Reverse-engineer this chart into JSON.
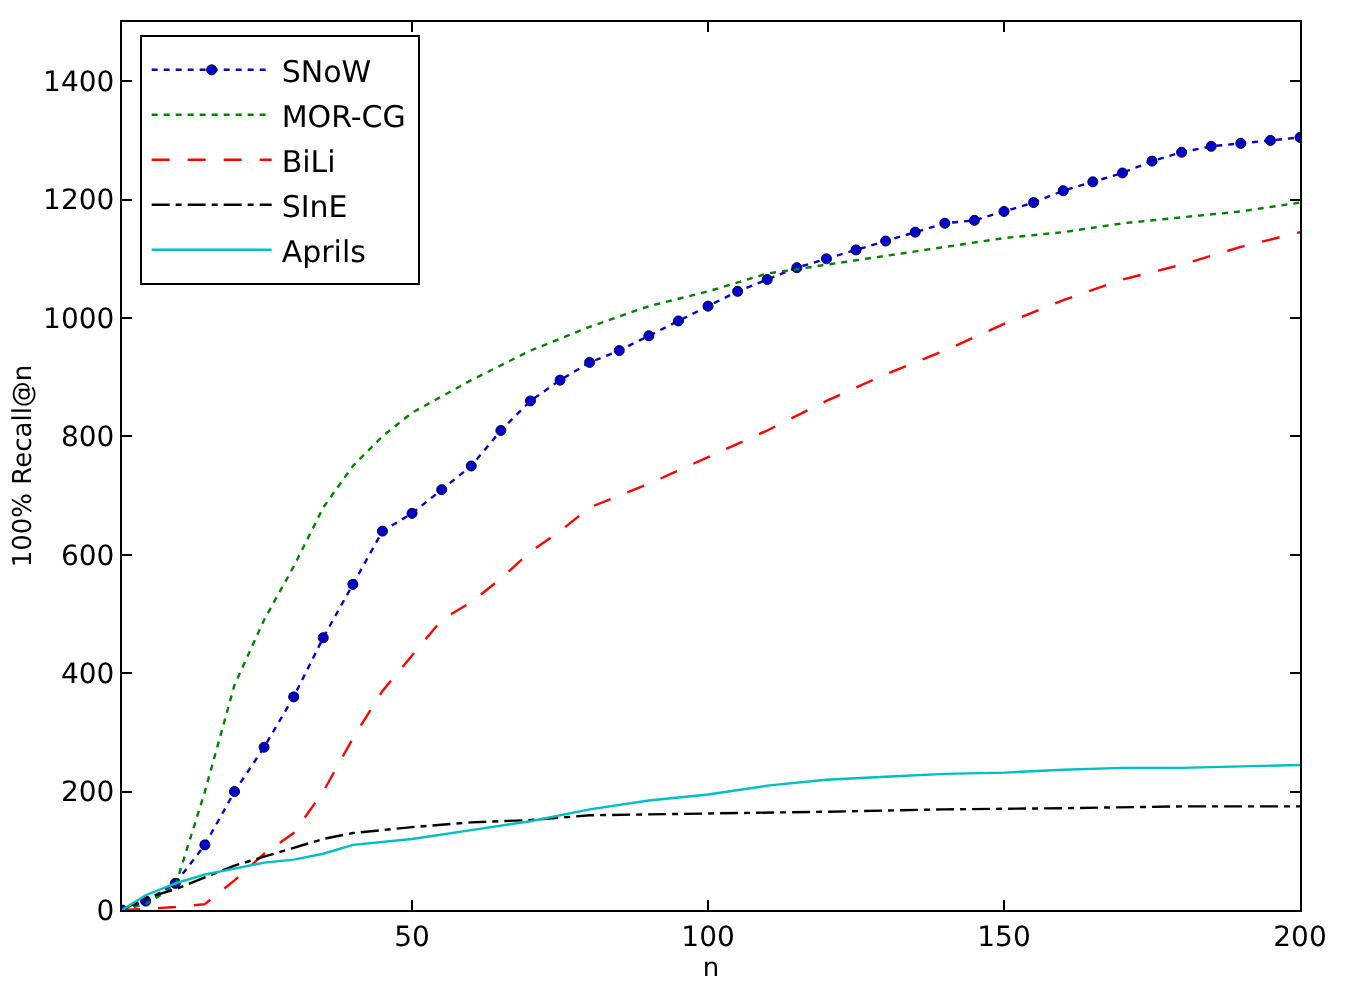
{
  "chart_data": {
    "type": "line",
    "xlabel": "n",
    "ylabel": "100% Recall@n",
    "xlim": [
      1,
      200
    ],
    "xticks": [
      50,
      100,
      150,
      200
    ],
    "ylim": [
      0,
      1500
    ],
    "yticks": [
      0,
      200,
      400,
      600,
      800,
      1000,
      1200,
      1400
    ],
    "legend": "top left",
    "series": [
      {
        "name": "SNoW",
        "color": "#0000cc",
        "marker": "circle",
        "line_style": "dotted",
        "x": [
          1,
          5,
          10,
          15,
          20,
          25,
          30,
          35,
          40,
          45,
          50,
          55,
          60,
          65,
          70,
          75,
          80,
          85,
          90,
          95,
          100,
          105,
          110,
          115,
          120,
          125,
          130,
          135,
          140,
          145,
          150,
          155,
          160,
          165,
          170,
          175,
          180,
          185,
          190,
          195,
          200
        ],
        "values": [
          0,
          15,
          45,
          110,
          200,
          275,
          360,
          460,
          550,
          640,
          670,
          710,
          750,
          810,
          860,
          895,
          925,
          945,
          970,
          995,
          1020,
          1045,
          1065,
          1085,
          1100,
          1115,
          1130,
          1145,
          1160,
          1165,
          1180,
          1195,
          1215,
          1230,
          1245,
          1265,
          1280,
          1290,
          1295,
          1300,
          1305
        ]
      },
      {
        "name": "MOR-CG",
        "color": "#008000",
        "line_style": "dotted",
        "x": [
          1,
          5,
          10,
          15,
          20,
          25,
          30,
          35,
          40,
          45,
          50,
          60,
          70,
          80,
          90,
          100,
          110,
          120,
          130,
          140,
          150,
          160,
          170,
          180,
          190,
          200
        ],
        "values": [
          0,
          10,
          40,
          200,
          380,
          490,
          580,
          680,
          750,
          800,
          840,
          895,
          945,
          985,
          1020,
          1045,
          1075,
          1090,
          1105,
          1120,
          1135,
          1145,
          1160,
          1170,
          1180,
          1195
        ]
      },
      {
        "name": "BiLi",
        "color": "#ff0000",
        "line_style": "dashed",
        "x": [
          1,
          5,
          10,
          15,
          20,
          25,
          30,
          35,
          40,
          45,
          50,
          55,
          60,
          65,
          70,
          75,
          80,
          90,
          100,
          110,
          120,
          130,
          140,
          150,
          160,
          170,
          180,
          190,
          200
        ],
        "values": [
          0,
          2,
          5,
          10,
          50,
          95,
          130,
          200,
          290,
          370,
          430,
          490,
          520,
          560,
          605,
          640,
          680,
          720,
          765,
          810,
          860,
          905,
          945,
          990,
          1030,
          1065,
          1090,
          1120,
          1145
        ]
      },
      {
        "name": "SInE",
        "color": "#000000",
        "line_style": "dashdot",
        "x": [
          1,
          5,
          10,
          15,
          20,
          25,
          30,
          35,
          40,
          50,
          60,
          70,
          80,
          100,
          120,
          140,
          160,
          180,
          200
        ],
        "values": [
          0,
          20,
          35,
          55,
          75,
          90,
          105,
          120,
          130,
          140,
          148,
          152,
          160,
          163,
          166,
          170,
          172,
          175,
          175
        ]
      },
      {
        "name": "Aprils",
        "color": "#00bfbf",
        "line_style": "solid",
        "x": [
          1,
          5,
          10,
          15,
          20,
          25,
          30,
          35,
          40,
          50,
          60,
          70,
          80,
          90,
          100,
          110,
          120,
          130,
          140,
          150,
          160,
          170,
          180,
          200
        ],
        "values": [
          0,
          25,
          45,
          60,
          70,
          80,
          85,
          95,
          110,
          120,
          135,
          150,
          170,
          185,
          195,
          210,
          220,
          225,
          230,
          232,
          237,
          240,
          240,
          245
        ]
      }
    ]
  }
}
